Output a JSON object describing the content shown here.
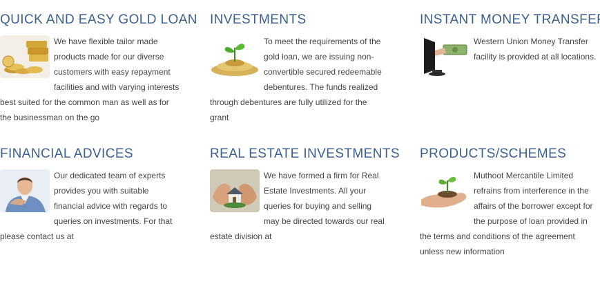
{
  "cards": [
    {
      "title": "QUICK AND EASY GOLD LOAN",
      "text": "We have flexible tailor made products made for our diverse customers with easy repayment facilities and with varying interests best suited for the common man as well as for the businessman on the go",
      "icon": "gold-coins-icon"
    },
    {
      "title": "INVESTMENTS",
      "text": "To meet the requirements of the gold loan, we are issuing non-convertible secured redeemable debentures. The funds realized through debentures are fully utilized for the grant",
      "icon": "plant-on-coins-icon"
    },
    {
      "title": "INSTANT MONEY TRANSFER",
      "text": "Western Union Money Transfer facility is provided at all locations.",
      "icon": "money-from-monitor-icon"
    },
    {
      "title": "FINANCIAL ADVICES",
      "text": "Our dedicated team of experts provides you with suitable financial advice with regards to queries on investments. For that please contact us at",
      "icon": "advisor-icon"
    },
    {
      "title": "REAL ESTATE INVESTMENTS",
      "text": "We have formed a firm for Real Estate Investments. All your queries for buying and selling may be directed towards our real estate division at",
      "icon": "house-in-hands-icon"
    },
    {
      "title": "PRODUCTS/SCHEMES",
      "text": "Muthoot Mercantile Limited refrains from interference in the affairs of the borrower except for the purpose of loan provided in the terms and conditions of the agreement unless new information",
      "icon": "sprout-in-hand-icon"
    }
  ],
  "colors": {
    "title": "#3b5f8e",
    "text": "#444444"
  }
}
